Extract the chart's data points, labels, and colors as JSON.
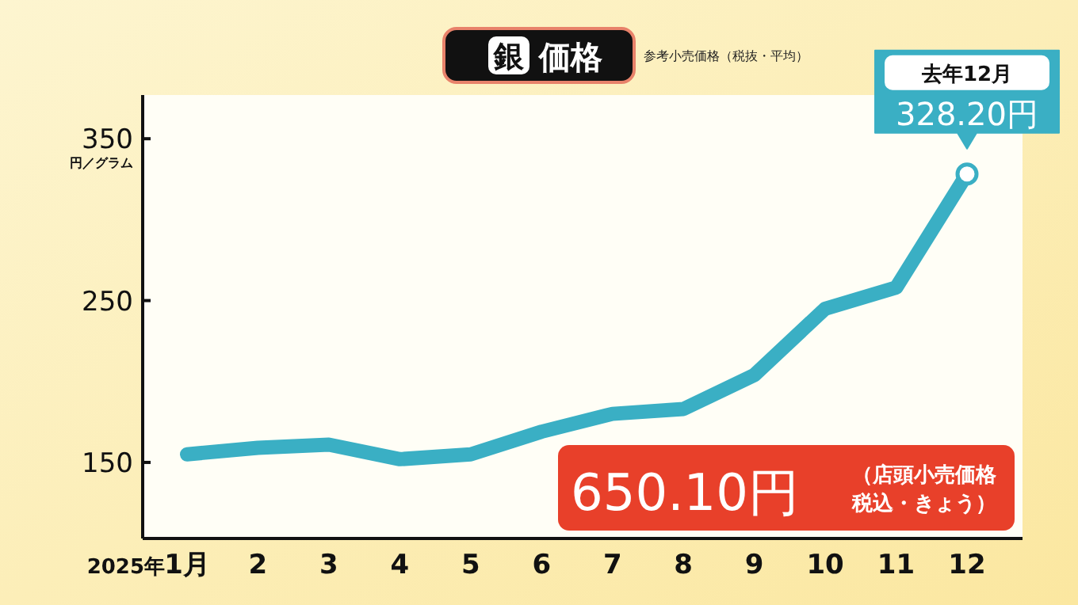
{
  "chart_data": {
    "type": "line",
    "title": "銀価格",
    "subtitle": "参考小売価格（税抜・平均）",
    "ylabel": "円／グラム",
    "categories": [
      "1月",
      "2",
      "3",
      "4",
      "5",
      "6",
      "7",
      "8",
      "9",
      "10",
      "11",
      "12"
    ],
    "series": [
      {
        "color": "#3aafc4",
        "values": [
          155,
          159,
          161,
          152,
          155,
          169,
          180,
          183,
          204,
          245,
          258,
          328.2
        ],
        "value_labels": [
          null,
          null,
          null,
          null,
          null,
          null,
          null,
          null,
          null,
          null,
          null,
          "328.20円"
        ]
      }
    ],
    "ylim": [
      103,
      377
    ],
    "yticks": [
      150,
      250,
      350
    ],
    "grid": false,
    "annotations": [
      "去年12月",
      "650.10円",
      "（店頭小売価格税込・きょう）",
      "2025年"
    ]
  }
}
